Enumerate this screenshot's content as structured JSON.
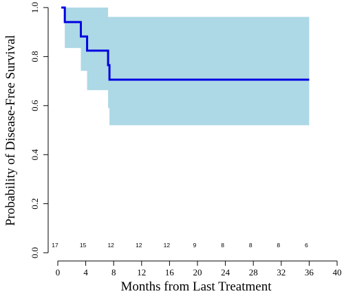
{
  "chart_data": {
    "type": "line",
    "subtype": "kaplan-meier step curve with confidence band",
    "xlabel": "Months from Last Treatment",
    "ylabel": "Probability of Disease-Free Survival",
    "xlim": [
      0,
      40
    ],
    "ylim": [
      0,
      1
    ],
    "x_ticks": [
      0,
      4,
      8,
      12,
      16,
      20,
      24,
      28,
      32,
      36,
      40
    ],
    "y_ticks": [
      "0.0",
      "0.2",
      "0.4",
      "0.6",
      "0.8",
      "1.0"
    ],
    "grid": false,
    "colors": {
      "line": "#0000e0",
      "band": "#add8e6",
      "axis": "#000000"
    },
    "survival_steps": [
      {
        "x": 0.5,
        "y": 1.0
      },
      {
        "x": 1.0,
        "y": 0.941
      },
      {
        "x": 3.3,
        "y": 0.882
      },
      {
        "x": 4.2,
        "y": 0.824
      },
      {
        "x": 7.2,
        "y": 0.765
      },
      {
        "x": 7.4,
        "y": 0.706
      },
      {
        "x": 36.0,
        "y": 0.706
      }
    ],
    "confidence_band": [
      {
        "x": 0.5,
        "lower": 1.0,
        "upper": 1.0
      },
      {
        "x": 1.0,
        "lower": 0.835,
        "upper": 1.0
      },
      {
        "x": 3.3,
        "lower": 0.742,
        "upper": 1.0
      },
      {
        "x": 4.2,
        "lower": 0.663,
        "upper": 1.0
      },
      {
        "x": 7.2,
        "lower": 0.59,
        "upper": 0.962
      },
      {
        "x": 7.4,
        "lower": 0.52,
        "upper": 0.962
      },
      {
        "x": 36.0,
        "lower": 0.52,
        "upper": 0.962
      }
    ],
    "number_at_risk": [
      {
        "x": 0,
        "n": "17"
      },
      {
        "x": 4,
        "n": "15"
      },
      {
        "x": 8,
        "n": "12"
      },
      {
        "x": 12,
        "n": "12"
      },
      {
        "x": 16,
        "n": "12"
      },
      {
        "x": 20,
        "n": "9"
      },
      {
        "x": 24,
        "n": "8"
      },
      {
        "x": 28,
        "n": "8"
      },
      {
        "x": 32,
        "n": "8"
      },
      {
        "x": 36,
        "n": "6"
      }
    ]
  }
}
